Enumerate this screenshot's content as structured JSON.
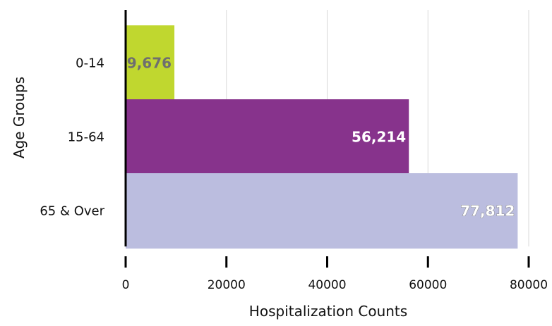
{
  "chart_data": {
    "type": "bar",
    "orientation": "horizontal",
    "categories": [
      "0-14",
      "15-64",
      "65 & Over"
    ],
    "values": [
      9676,
      56214,
      77812
    ],
    "data_labels": [
      "9,676",
      "56,214",
      "77,812"
    ],
    "bar_colors": [
      "#c0d72f",
      "#87338c",
      "#bbbddf"
    ],
    "label_colors": [
      "#6f6f6f",
      "#ffffff",
      "#ffffff"
    ],
    "xlabel": "Hospitalization Counts",
    "ylabel": "Age Groups",
    "xlim": [
      0,
      80000
    ],
    "xticks": [
      0,
      20000,
      40000,
      60000,
      80000
    ],
    "xtick_labels": [
      "0",
      "20000",
      "40000",
      "60000",
      "80000"
    ],
    "grid": "vertical",
    "legend": "none"
  }
}
